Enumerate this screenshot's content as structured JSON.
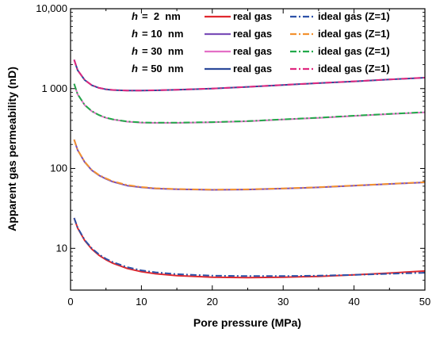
{
  "chart_data": {
    "type": "line",
    "xlabel": "Pore pressure (MPa)",
    "ylabel": "Apparent gas permeability (nD)",
    "xlim": [
      0,
      50
    ],
    "ylim": [
      3,
      10000
    ],
    "yscale": "log",
    "xticks": [
      0,
      10,
      20,
      30,
      40,
      50
    ],
    "xtick_labels": [
      "0",
      "10",
      "20",
      "30",
      "40",
      "50"
    ],
    "yticks": [
      10,
      100,
      1000,
      10000
    ],
    "ytick_labels": [
      "10",
      "100",
      "1 000",
      "10,000"
    ],
    "legend_position": "top-right",
    "legend": [
      {
        "h_symbol": "h",
        "h_value": "=  2  nm",
        "real_label": "real gas",
        "ideal_label": "ideal gas (Z=1)",
        "real_color": "#e0282e",
        "ideal_color": "#2d52a8"
      },
      {
        "h_symbol": "h",
        "h_value": "= 10  nm",
        "real_label": "real gas",
        "ideal_label": "ideal gas (Z=1)",
        "real_color": "#7b4fb8",
        "ideal_color": "#f39230"
      },
      {
        "h_symbol": "h",
        "h_value": "= 30  nm",
        "real_label": "real gas",
        "ideal_label": "ideal gas (Z=1)",
        "real_color": "#e36fc6",
        "ideal_color": "#22a94a"
      },
      {
        "h_symbol": "h",
        "h_value": "= 50  nm",
        "real_label": "real gas",
        "ideal_label": "ideal gas (Z=1)",
        "real_color": "#2c4a9a",
        "ideal_color": "#e0287f"
      }
    ],
    "x": [
      0.5,
      1,
      2,
      3,
      4,
      5,
      6,
      8,
      10,
      12,
      15,
      20,
      25,
      30,
      35,
      40,
      45,
      50
    ],
    "series": [
      {
        "group": "2 nm",
        "kind": "real gas",
        "color": "#e0282e",
        "dash": "solid",
        "values": [
          24,
          18,
          12.5,
          9.8,
          8.2,
          7.2,
          6.5,
          5.6,
          5.1,
          4.8,
          4.55,
          4.35,
          4.3,
          4.35,
          4.45,
          4.65,
          4.9,
          5.2
        ]
      },
      {
        "group": "2 nm",
        "kind": "ideal gas (Z=1)",
        "color": "#2d52a8",
        "dash": "dashdot",
        "values": [
          24,
          18.2,
          12.7,
          10,
          8.4,
          7.4,
          6.7,
          5.8,
          5.3,
          5.0,
          4.75,
          4.55,
          4.5,
          4.5,
          4.55,
          4.65,
          4.8,
          4.95
        ]
      },
      {
        "group": "10 nm",
        "kind": "real gas",
        "color": "#7b4fb8",
        "dash": "solid",
        "values": [
          230,
          170,
          120,
          95,
          82,
          74,
          68,
          61,
          58,
          56,
          55,
          54,
          54.5,
          56,
          58,
          61,
          64,
          67
        ]
      },
      {
        "group": "10 nm",
        "kind": "ideal gas (Z=1)",
        "color": "#f39230",
        "dash": "dashdot",
        "values": [
          230,
          171,
          121,
          96,
          83,
          75,
          69,
          62,
          58.5,
          56.5,
          55.2,
          54.3,
          54.8,
          56.3,
          58.3,
          61.2,
          64.2,
          67.2
        ]
      },
      {
        "group": "30 nm",
        "kind": "real gas",
        "color": "#e36fc6",
        "dash": "solid",
        "values": [
          1150,
          850,
          620,
          520,
          465,
          430,
          410,
          385,
          375,
          372,
          372,
          378,
          390,
          410,
          430,
          455,
          480,
          505
        ]
      },
      {
        "group": "30 nm",
        "kind": "ideal gas (Z=1)",
        "color": "#22a94a",
        "dash": "dashdot",
        "values": [
          1150,
          852,
          622,
          522,
          467,
          432,
          412,
          387,
          377,
          374,
          374,
          380,
          392,
          412,
          432,
          457,
          482,
          507
        ]
      },
      {
        "group": "50 nm",
        "kind": "real gas",
        "color": "#2c4a9a",
        "dash": "solid",
        "values": [
          2300,
          1700,
          1280,
          1100,
          1020,
          980,
          960,
          945,
          945,
          950,
          965,
          1000,
          1050,
          1110,
          1170,
          1230,
          1300,
          1370
        ]
      },
      {
        "group": "50 nm",
        "kind": "ideal gas (Z=1)",
        "color": "#e0287f",
        "dash": "dashdot",
        "values": [
          2300,
          1702,
          1282,
          1102,
          1022,
          982,
          962,
          947,
          947,
          952,
          967,
          1002,
          1052,
          1112,
          1172,
          1232,
          1302,
          1372
        ]
      }
    ]
  }
}
